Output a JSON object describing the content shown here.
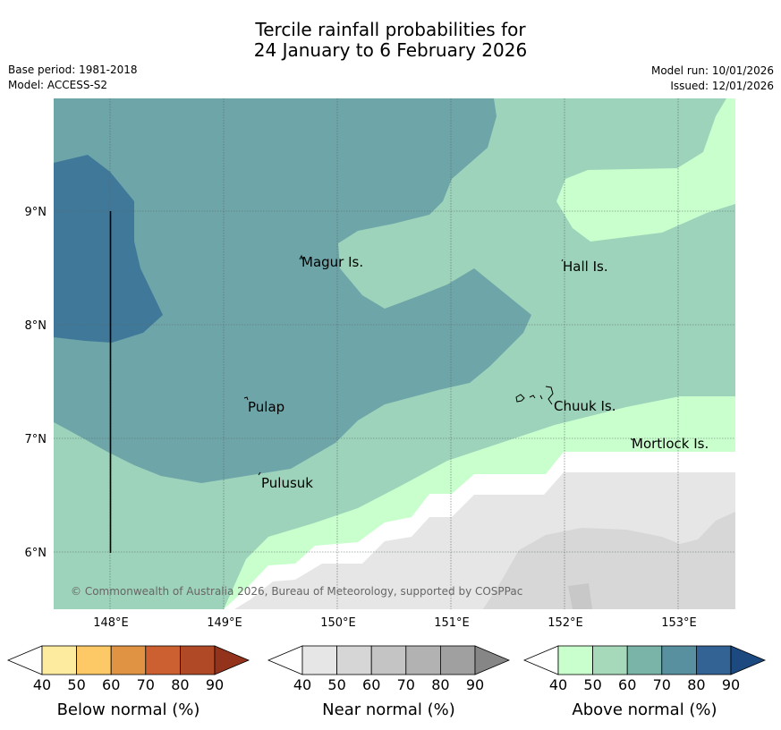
{
  "title_line1": "Tercile rainfall probabilities for",
  "title_line2": "24 January to 6 February 2026",
  "base_period": "Base period: 1981-2018",
  "model": "Model: ACCESS-S2",
  "model_run": "Model run: 10/01/2026",
  "issued": "Issued: 12/01/2026",
  "copyright": "© Commonwealth of Australia 2026, Bureau of Meteorology, supported by COSPPac",
  "map": {
    "lat_ticks": [
      "9°N",
      "8°N",
      "7°N",
      "6°N"
    ],
    "lon_ticks": [
      "148°E",
      "149°E",
      "150°E",
      "151°E",
      "152°E",
      "153°E"
    ],
    "places": [
      "Magur Is.",
      "Hall Is.",
      "Pulap",
      "Chuuk Is.",
      "Mortlock Is.",
      "Pulusuk"
    ]
  },
  "legends": [
    {
      "name": "Below normal (%)",
      "ticks": [
        "40",
        "50",
        "60",
        "70",
        "80",
        "90"
      ],
      "colors": [
        "#fdec9f",
        "#fdc967",
        "#e09443",
        "#cc6030",
        "#b04a26",
        "#94331c"
      ]
    },
    {
      "name": "Near normal (%)",
      "ticks": [
        "40",
        "50",
        "60",
        "70",
        "80",
        "90"
      ],
      "colors": [
        "#e6e6e6",
        "#d6d6d6",
        "#c4c4c4",
        "#b2b2b2",
        "#a0a0a0",
        "#868686"
      ]
    },
    {
      "name": "Above normal (%)",
      "ticks": [
        "40",
        "50",
        "60",
        "70",
        "80",
        "90"
      ],
      "colors": [
        "#c8ffcc",
        "#a6d9ba",
        "#7ab3a8",
        "#5890a0",
        "#336395",
        "#1c4a80"
      ]
    }
  ],
  "colors": {
    "above_40": "#c8ffcc",
    "above_50": "#9dd3ba",
    "above_60": "#6ea5a8",
    "above_70": "#3f7899",
    "near_40": "#e6e6e6",
    "near_50": "#d7d7d7",
    "grid": "#5a6a6a"
  }
}
